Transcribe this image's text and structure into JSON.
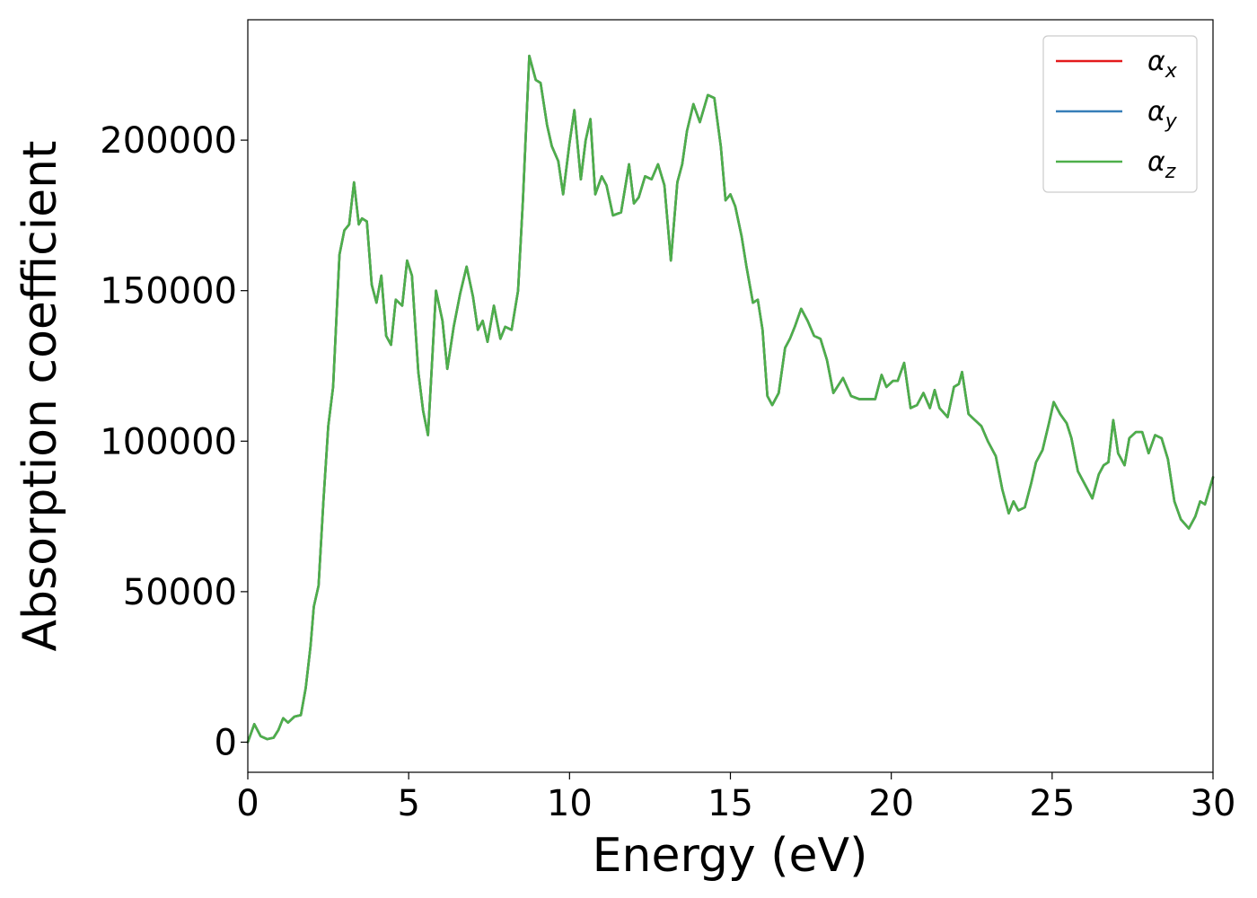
{
  "chart_data": {
    "type": "line",
    "title": "",
    "xlabel": "Energy (eV)",
    "ylabel": "Absorption coefficient",
    "xlim": [
      0,
      30
    ],
    "ylim": [
      -10000,
      240000
    ],
    "xticks": [
      0,
      5,
      10,
      15,
      20,
      25,
      30
    ],
    "xtick_labels": [
      "0",
      "5",
      "10",
      "15",
      "20",
      "25",
      "30"
    ],
    "yticks": [
      0,
      50000,
      100000,
      150000,
      200000
    ],
    "ytick_labels": [
      "0",
      "50000",
      "100000",
      "150000",
      "200000"
    ],
    "grid": false,
    "legend_position": "top-right",
    "legend": [
      {
        "symbol": "α",
        "sub": "x",
        "color": "#e41a1c"
      },
      {
        "symbol": "α",
        "sub": "y",
        "color": "#377eb8"
      },
      {
        "symbol": "α",
        "sub": "z",
        "color": "#4daf4a"
      }
    ],
    "x": [
      0.0,
      0.2,
      0.4,
      0.6,
      0.8,
      0.95,
      1.1,
      1.25,
      1.45,
      1.65,
      1.8,
      1.95,
      2.05,
      2.2,
      2.35,
      2.5,
      2.65,
      2.85,
      3.0,
      3.15,
      3.3,
      3.45,
      3.55,
      3.7,
      3.85,
      4.0,
      4.15,
      4.3,
      4.45,
      4.6,
      4.8,
      4.95,
      5.1,
      5.3,
      5.45,
      5.6,
      5.85,
      6.05,
      6.2,
      6.4,
      6.6,
      6.8,
      7.0,
      7.15,
      7.3,
      7.45,
      7.65,
      7.85,
      8.0,
      8.2,
      8.4,
      8.55,
      8.75,
      8.95,
      9.1,
      9.3,
      9.45,
      9.65,
      9.8,
      10.0,
      10.15,
      10.35,
      10.5,
      10.65,
      10.8,
      11.0,
      11.15,
      11.35,
      11.6,
      11.85,
      12.0,
      12.15,
      12.35,
      12.55,
      12.75,
      12.95,
      13.15,
      13.35,
      13.5,
      13.65,
      13.85,
      14.05,
      14.3,
      14.5,
      14.7,
      14.85,
      15.0,
      15.15,
      15.35,
      15.5,
      15.7,
      15.85,
      16.0,
      16.15,
      16.3,
      16.5,
      16.7,
      16.85,
      17.0,
      17.2,
      17.4,
      17.6,
      17.8,
      18.0,
      18.2,
      18.5,
      18.75,
      19.0,
      19.3,
      19.5,
      19.7,
      19.85,
      20.05,
      20.2,
      20.4,
      20.6,
      20.8,
      21.0,
      21.2,
      21.35,
      21.5,
      21.75,
      21.95,
      22.1,
      22.2,
      22.4,
      22.6,
      22.8,
      23.0,
      23.25,
      23.45,
      23.65,
      23.8,
      23.95,
      24.15,
      24.35,
      24.5,
      24.7,
      24.9,
      25.05,
      25.25,
      25.45,
      25.6,
      25.8,
      26.05,
      26.25,
      26.45,
      26.6,
      26.75,
      26.9,
      27.05,
      27.25,
      27.4,
      27.6,
      27.8,
      28.0,
      28.2,
      28.4,
      28.6,
      28.8,
      29.0,
      29.25,
      29.45,
      29.6,
      29.75,
      30.0
    ],
    "series": [
      {
        "name": "αx",
        "color": "#e41a1c",
        "width": 2.6
      },
      {
        "name": "αy",
        "color": "#377eb8",
        "width": 2.6
      },
      {
        "name": "αz",
        "color": "#4daf4a",
        "width": 2.6,
        "values": [
          0,
          6000,
          2000,
          1000,
          1500,
          4000,
          8000,
          6500,
          8500,
          9000,
          18000,
          32000,
          45000,
          52000,
          80000,
          105000,
          118000,
          162000,
          170000,
          172000,
          186000,
          172000,
          174000,
          173000,
          152000,
          146000,
          155000,
          135000,
          132000,
          147000,
          145000,
          160000,
          155000,
          123000,
          110000,
          102000,
          150000,
          140000,
          124000,
          138000,
          149000,
          158000,
          148000,
          137000,
          140000,
          133000,
          145000,
          134000,
          138000,
          137000,
          150000,
          180000,
          228000,
          220000,
          219000,
          205000,
          198000,
          193000,
          182000,
          199000,
          210000,
          187000,
          200000,
          207000,
          182000,
          188000,
          185000,
          175000,
          176000,
          192000,
          179000,
          181000,
          188000,
          187000,
          192000,
          185000,
          160000,
          186000,
          192000,
          203000,
          212000,
          206000,
          215000,
          214000,
          198000,
          180000,
          182000,
          178000,
          168000,
          158000,
          146000,
          147000,
          137000,
          115000,
          112000,
          116000,
          131000,
          134000,
          138000,
          144000,
          140000,
          135000,
          134000,
          127000,
          116000,
          121000,
          115000,
          114000,
          114000,
          114000,
          122000,
          118000,
          120000,
          120000,
          126000,
          111000,
          112000,
          116000,
          111000,
          117000,
          111000,
          108000,
          118000,
          119000,
          123000,
          109000,
          107000,
          105000,
          100000,
          95000,
          84000,
          76000,
          80000,
          77000,
          78000,
          86000,
          93000,
          97000,
          106000,
          113000,
          109000,
          106000,
          101000,
          90000,
          85000,
          81000,
          89000,
          92000,
          93000,
          107000,
          96000,
          92000,
          101000,
          103000,
          103000,
          96000,
          102000,
          101000,
          94000,
          80000,
          74000,
          71000,
          75000,
          80000,
          79000,
          88000
        ]
      }
    ],
    "note_series_overlap": "all three series share the same values; αz drawn on top"
  }
}
